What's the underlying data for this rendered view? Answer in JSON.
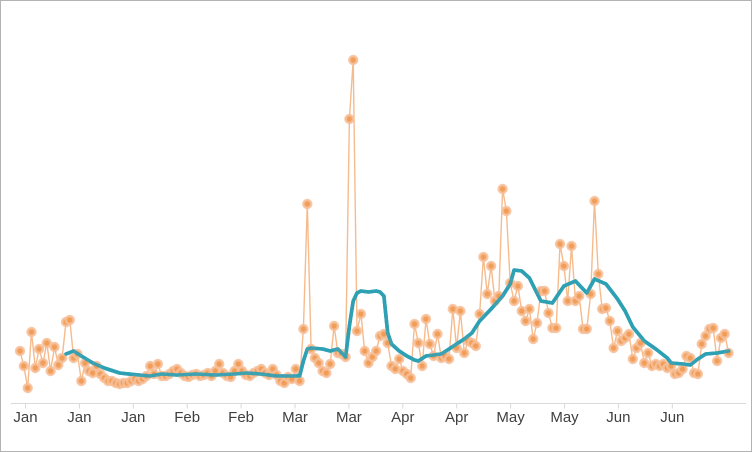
{
  "window": {
    "background": "#ffffff",
    "border_color": "#b3b3b3"
  },
  "chart_data": {
    "type": "line",
    "title": "",
    "subtitle": "",
    "description": "Daily time series (orange circle markers joined by a thin orange line) from early January to early July with a teal moving-average trend line. No y-axis shown; values in arbitrary units (pixel-derived, max spike = 341). Large spikes: early March (~197), mid-March (282 and 341 on consecutive days), early May (~212), late May (~200).",
    "xlabel": "",
    "ylabel": "",
    "x_tick_labels": [
      "Jan",
      "Jan",
      "Jan",
      "Feb",
      "Feb",
      "Mar",
      "Mar",
      "Apr",
      "Apr",
      "May",
      "May",
      "Jun",
      "Jun"
    ],
    "x_tick_spacing_days": 14,
    "y_axis_visible": false,
    "grid": "off",
    "legend": "none",
    "ylim": [
      0,
      360
    ],
    "axis": {
      "line_color": "#d9d9d9",
      "tick_color": "#d9d9d9",
      "label_color": "#3f3f3f"
    },
    "series": [
      {
        "name": "daily-values",
        "type": "line+markers",
        "marker_fill": "#f09a52",
        "marker_ring": "#f7c09a",
        "line_color": "#f6bb8d",
        "values": [
          50,
          35,
          13,
          69,
          33,
          52,
          38,
          58,
          30,
          54,
          36,
          43,
          79,
          81,
          43,
          47,
          20,
          38,
          30,
          28,
          35,
          27,
          23,
          20,
          20,
          18,
          17,
          18,
          18,
          20,
          22,
          20,
          22,
          25,
          35,
          27,
          37,
          25,
          25,
          27,
          30,
          32,
          28,
          25,
          24,
          26,
          27,
          25,
          26,
          28,
          25,
          30,
          37,
          28,
          25,
          24,
          30,
          37,
          30,
          26,
          25,
          28,
          30,
          32,
          28,
          26,
          32,
          26,
          20,
          18,
          24,
          22,
          32,
          20,
          72,
          197,
          52,
          43,
          38,
          30,
          28,
          37,
          75,
          48,
          47,
          44,
          282,
          341,
          70,
          87,
          50,
          38,
          44,
          50,
          65,
          67,
          58,
          35,
          32,
          42,
          30,
          27,
          23,
          77,
          58,
          35,
          82,
          57,
          45,
          67,
          43,
          45,
          42,
          92,
          53,
          90,
          48,
          60,
          58,
          55,
          87,
          144,
          107,
          135,
          100,
          105,
          212,
          190,
          118,
          100,
          115,
          90,
          80,
          92,
          62,
          78,
          110,
          110,
          88,
          73,
          73,
          157,
          135,
          100,
          155,
          100,
          105,
          72,
          72,
          107,
          200,
          127,
          92,
          93,
          80,
          53,
          70,
          60,
          63,
          67,
          42,
          53,
          58,
          38,
          48,
          35,
          37,
          35,
          37,
          33,
          35,
          27,
          28,
          32,
          45,
          43,
          28,
          27,
          57,
          65,
          72,
          73,
          40,
          63,
          67,
          48
        ]
      },
      {
        "name": "moving-average",
        "type": "line",
        "color": "#2f9fb4",
        "points": [
          [
            12,
            47
          ],
          [
            14,
            50
          ],
          [
            16,
            45
          ],
          [
            19,
            38
          ],
          [
            22,
            33
          ],
          [
            26,
            28
          ],
          [
            31,
            26
          ],
          [
            34,
            25
          ],
          [
            37,
            27
          ],
          [
            41,
            26
          ],
          [
            46,
            27
          ],
          [
            51,
            26
          ],
          [
            56,
            27
          ],
          [
            59,
            28
          ],
          [
            63,
            27
          ],
          [
            67,
            25
          ],
          [
            71,
            25
          ],
          [
            73,
            25
          ],
          [
            74,
            40
          ],
          [
            75,
            52
          ],
          [
            76,
            53
          ],
          [
            79,
            52
          ],
          [
            81,
            50
          ],
          [
            83,
            52
          ],
          [
            85,
            44
          ],
          [
            86,
            75
          ],
          [
            87,
            100
          ],
          [
            88,
            108
          ],
          [
            89,
            110
          ],
          [
            91,
            109
          ],
          [
            93,
            110
          ],
          [
            94,
            109
          ],
          [
            95,
            105
          ],
          [
            96,
            68
          ],
          [
            97,
            57
          ],
          [
            99,
            50
          ],
          [
            101,
            45
          ],
          [
            103,
            41
          ],
          [
            104,
            40
          ],
          [
            106,
            45
          ],
          [
            108,
            46
          ],
          [
            110,
            47
          ],
          [
            112,
            52
          ],
          [
            114,
            57
          ],
          [
            116,
            62
          ],
          [
            118,
            68
          ],
          [
            120,
            80
          ],
          [
            123,
            92
          ],
          [
            126,
            105
          ],
          [
            128,
            117
          ],
          [
            129,
            131
          ],
          [
            131,
            130
          ],
          [
            133,
            123
          ],
          [
            136,
            100
          ],
          [
            139,
            98
          ],
          [
            142,
            115
          ],
          [
            145,
            120
          ],
          [
            148,
            108
          ],
          [
            150,
            122
          ],
          [
            153,
            117
          ],
          [
            156,
            102
          ],
          [
            158,
            90
          ],
          [
            160,
            74
          ],
          [
            163,
            60
          ],
          [
            166,
            52
          ],
          [
            169,
            43
          ],
          [
            170,
            38
          ],
          [
            173,
            37
          ],
          [
            175,
            36
          ],
          [
            177,
            42
          ],
          [
            179,
            47
          ],
          [
            182,
            48
          ],
          [
            185,
            50
          ]
        ]
      }
    ]
  }
}
